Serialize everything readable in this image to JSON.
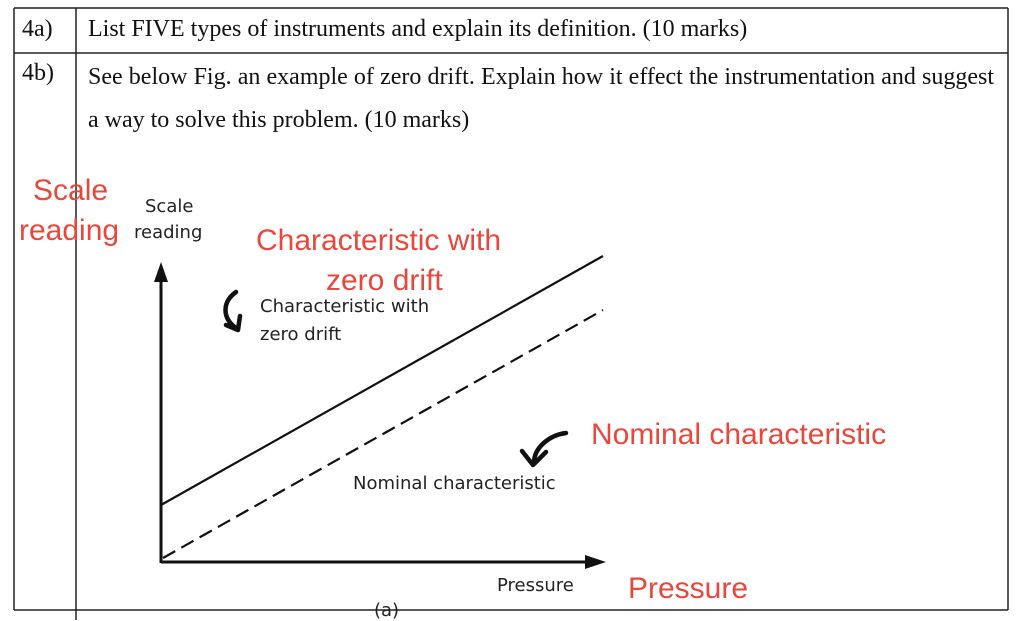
{
  "questions": [
    {
      "number": "4a)",
      "text": "List FIVE types of instruments and explain its definition. (10 marks)"
    },
    {
      "number": "4b)",
      "text": "See below Fig. an example of zero drift. Explain how it effect the instrumentation and suggest a way to solve this problem. (10 marks)"
    }
  ],
  "figure": {
    "y_label_line1": "Scale",
    "y_label_line2": "reading",
    "x_label": "Pressure",
    "label_zero_drift_line1": "Characteristic with",
    "label_zero_drift_line2": "zero drift",
    "label_nominal": "Nominal characteristic",
    "caption_partial": "(a)"
  },
  "annotations": {
    "scale_line1": "Scale",
    "scale_line2": "reading",
    "zero_drift_line1": "Characteristic with",
    "zero_drift_line2": "zero drift",
    "nominal": "Nominal characteristic",
    "pressure": "Pressure",
    "color": "#e8473c"
  }
}
